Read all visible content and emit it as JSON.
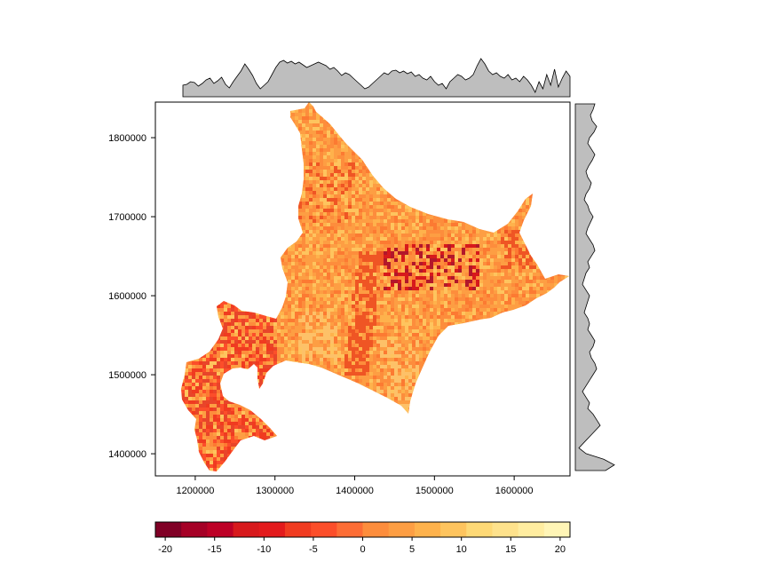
{
  "map": {
    "type": "raster-map-with-marginal-profiles",
    "x_axis": {
      "tick_labels": [
        "1200000",
        "1300000",
        "1400000",
        "1500000",
        "1600000"
      ],
      "tick_values": [
        1200000,
        1300000,
        1400000,
        1500000,
        1600000
      ],
      "range": [
        1150000,
        1670000
      ]
    },
    "y_axis": {
      "tick_labels": [
        "1400000",
        "1500000",
        "1600000",
        "1700000",
        "1800000"
      ],
      "tick_values": [
        1400000,
        1500000,
        1600000,
        1700000,
        1800000
      ],
      "range": [
        1372000,
        1845000
      ]
    },
    "marginal_top": {
      "fill": "#bebebe"
    },
    "marginal_right": {
      "fill": "#bebebe"
    }
  },
  "colorkey": {
    "tick_labels": [
      "-20",
      "-15",
      "-10",
      "-5",
      "0",
      "5",
      "10",
      "15",
      "20"
    ],
    "tick_values": [
      -20,
      -15,
      -10,
      -5,
      0,
      5,
      10,
      15,
      20
    ],
    "range": [
      -21,
      21
    ],
    "colors": [
      "#800026",
      "#a50026",
      "#bd0026",
      "#d7191c",
      "#e31a1c",
      "#f03b20",
      "#fc4e2a",
      "#fd6d35",
      "#fd8d3c",
      "#fd9e43",
      "#feb24c",
      "#fec45e",
      "#fed976",
      "#fee28c",
      "#ffeda0",
      "#fff5b6"
    ]
  },
  "colors": {
    "land_base": "#fd9b45",
    "land_light": "#fdc168",
    "land_dark": "#ef5524",
    "land_darkest": "#b2172b"
  }
}
